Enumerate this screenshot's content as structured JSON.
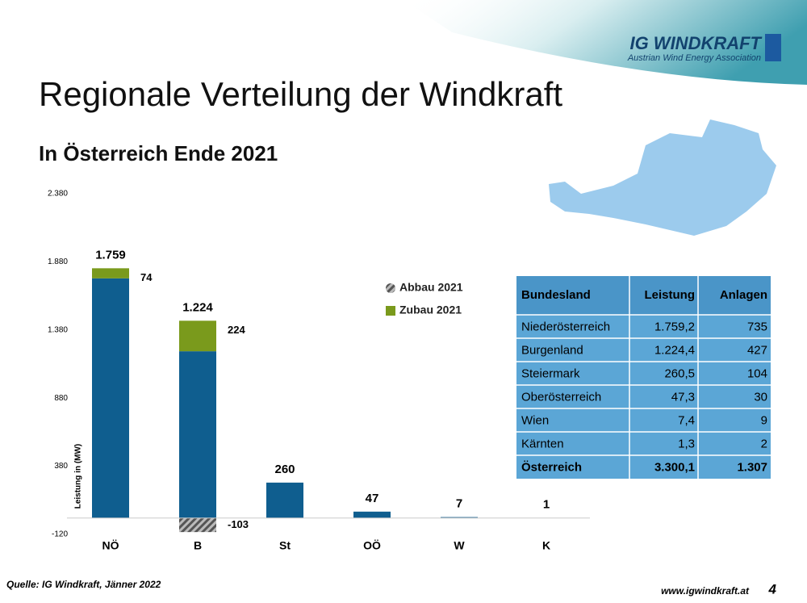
{
  "header": {
    "logo": "IG WINDKRAFT",
    "logo_subtitle": "Austrian Wind Energy Association"
  },
  "chart_data": {
    "type": "bar",
    "stacked": true,
    "title": "Regionale Verteilung der Windkraft",
    "subtitle": "In Österreich Ende 2021",
    "y_label": "Leistung in (MW)",
    "categories": [
      "NÖ",
      "B",
      "St",
      "OÖ",
      "W",
      "K"
    ],
    "series": [
      {
        "color": "#0f5e8f",
        "values": [
          1759,
          1224,
          260,
          47,
          7,
          1
        ],
        "value_labels": [
          "1.759",
          "1.224",
          "260",
          "47",
          "7",
          "1"
        ]
      },
      {
        "name": "Zubau 2021",
        "color": "#7a9a1c",
        "values": [
          74,
          224,
          0,
          0,
          0,
          0
        ],
        "value_labels": [
          "74",
          "224",
          null,
          null,
          null,
          null
        ]
      },
      {
        "name": "Abbau 2021",
        "color": "#555555",
        "hatch": true,
        "values": [
          0,
          -103,
          0,
          0,
          0,
          0
        ],
        "value_labels": [
          null,
          "-103",
          null,
          null,
          null,
          null
        ]
      }
    ],
    "ylim": [
      -120,
      2380
    ],
    "yticks": [
      -120,
      380,
      880,
      {
        "value": 1380,
        "label": "1.380"
      },
      {
        "value": 1880,
        "label": "1.880"
      },
      {
        "value": 2380,
        "label": "2.380"
      }
    ],
    "legend": "right"
  },
  "table": {
    "header": [
      "Bundesland",
      "Leistung",
      "Anlagen"
    ],
    "rows": [
      [
        "Niederösterreich",
        "1.759,2",
        "735"
      ],
      [
        "Burgenland",
        "1.224,4",
        "427"
      ],
      [
        "Steiermark",
        "260,5",
        "104"
      ],
      [
        "Oberösterreich",
        "47,3",
        "30"
      ],
      [
        "Wien",
        "7,4",
        "9"
      ],
      [
        "Kärnten",
        "1,3",
        "2"
      ],
      [
        "Österreich",
        "3.300,1",
        "1.307"
      ]
    ]
  },
  "footer": {
    "source": "Quelle: IG Windkraft, Jänner 2022",
    "url": "www.igwindkraft.at",
    "page": "4"
  }
}
